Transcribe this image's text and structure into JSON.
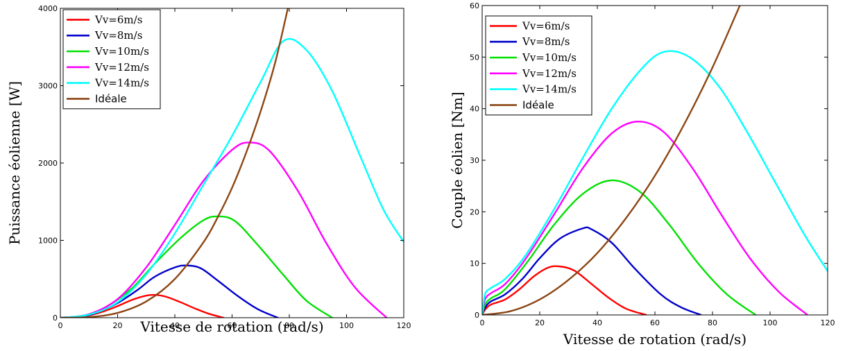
{
  "colors": {
    "Vv=6m/s": "#ff0000",
    "Vv=8m/s": "#0000cc",
    "Vv=10m/s": "#00e000",
    "Vv=12m/s": "#ff00ff",
    "Vv=14m/s": "#00ffff",
    "Idéale": "#8b4513"
  },
  "chart_data": [
    {
      "type": "line",
      "xlabel": "Vitesse de rotation (rad/s)",
      "ylabel": "Puissance éolienne [W]",
      "xlim": [
        0,
        120
      ],
      "ylim": [
        0,
        4000
      ],
      "xticks": [
        0,
        20,
        40,
        60,
        80,
        100,
        120
      ],
      "yticks": [
        0,
        1000,
        2000,
        3000,
        4000
      ],
      "grid": false,
      "legend_position": "top-left",
      "series": [
        {
          "name": "Vv=6m/s",
          "x": [
            0,
            5,
            10,
            15,
            20,
            25,
            30,
            33,
            37,
            42,
            47,
            52,
            57
          ],
          "y": [
            0,
            5,
            30,
            80,
            150,
            230,
            285,
            295,
            270,
            200,
            120,
            50,
            0
          ]
        },
        {
          "name": "Vv=8m/s",
          "x": [
            0,
            7,
            13,
            20,
            27,
            33,
            40,
            44,
            49,
            55,
            62,
            69,
            76
          ],
          "y": [
            0,
            12,
            70,
            190,
            360,
            530,
            650,
            675,
            640,
            480,
            280,
            110,
            0
          ]
        },
        {
          "name": "Vv=10m/s",
          "x": [
            0,
            8,
            16,
            25,
            33,
            42,
            50,
            55,
            61,
            69,
            78,
            86,
            95
          ],
          "y": [
            0,
            25,
            140,
            380,
            700,
            1030,
            1260,
            1310,
            1250,
            940,
            550,
            220,
            0
          ]
        },
        {
          "name": "Vv=12m/s",
          "x": [
            0,
            10,
            20,
            30,
            40,
            50,
            60,
            66,
            73,
            83,
            93,
            103,
            114
          ],
          "y": [
            0,
            45,
            240,
            650,
            1200,
            1770,
            2170,
            2265,
            2160,
            1640,
            960,
            390,
            0
          ]
        },
        {
          "name": "Vv=14m/s",
          "x": [
            0,
            10,
            20,
            30,
            40,
            50,
            60,
            70,
            78,
            86,
            95,
            105,
            113,
            120
          ],
          "y": [
            0,
            40,
            200,
            560,
            1090,
            1720,
            2350,
            3050,
            3580,
            3460,
            2930,
            2070,
            1390,
            980
          ]
        },
        {
          "name": "Idéale",
          "x": [
            0,
            10,
            20,
            30,
            40,
            50,
            55,
            60,
            65,
            70,
            75,
            79.5
          ],
          "y": [
            0,
            8,
            62,
            210,
            500,
            975,
            1300,
            1680,
            2140,
            2670,
            3290,
            4000
          ]
        }
      ]
    },
    {
      "type": "line",
      "xlabel": "Vitesse de rotation (rad/s)",
      "ylabel": "Couple éolien [Nm]",
      "xlim": [
        0,
        120
      ],
      "ylim": [
        0,
        60
      ],
      "xticks": [
        0,
        20,
        40,
        60,
        80,
        100,
        120
      ],
      "yticks": [
        0,
        10,
        20,
        30,
        40,
        50,
        60
      ],
      "grid": false,
      "legend_position": "top-left",
      "series": [
        {
          "name": "Vv=6m/s",
          "x": [
            0,
            1,
            3,
            8,
            13,
            18,
            23,
            27,
            32,
            38,
            44,
            50,
            57
          ],
          "y": [
            0,
            1.0,
            2.0,
            3.0,
            5.0,
            7.5,
            9.2,
            9.4,
            8.6,
            6.0,
            3.3,
            1.2,
            0
          ]
        },
        {
          "name": "Vv=8m/s",
          "x": [
            0,
            1,
            3,
            8,
            14,
            20,
            27,
            35,
            38,
            45,
            53,
            62,
            69,
            76
          ],
          "y": [
            0,
            1.4,
            2.6,
            4.0,
            7.0,
            11.0,
            14.8,
            16.8,
            16.6,
            14.0,
            9.0,
            4.0,
            1.5,
            0
          ]
        },
        {
          "name": "Vv=10m/s",
          "x": [
            0,
            1,
            3,
            8,
            16,
            25,
            35,
            45,
            55,
            65,
            75,
            85,
            95
          ],
          "y": [
            0,
            2.0,
            3.2,
            5.0,
            10.5,
            17.5,
            23.5,
            26.1,
            23.8,
            17.5,
            10.0,
            4.0,
            0
          ]
        },
        {
          "name": "Vv=12m/s",
          "x": [
            0,
            1,
            3,
            8,
            15,
            25,
            35,
            45,
            54,
            63,
            73,
            83,
            93,
            103,
            113
          ],
          "y": [
            0,
            3.0,
            4.2,
            6.0,
            10.8,
            19.5,
            28.5,
            35.2,
            37.5,
            35.5,
            28.5,
            19.5,
            11.0,
            4.5,
            0
          ]
        },
        {
          "name": "Vv=14m/s",
          "x": [
            0,
            1,
            3,
            8,
            15,
            25,
            35,
            45,
            55,
            63,
            72,
            82,
            92,
            102,
            112,
            120
          ],
          "y": [
            0,
            4.0,
            5.2,
            7.0,
            11.5,
            20.5,
            30.5,
            40.0,
            47.5,
            51.0,
            50.0,
            44.5,
            35.5,
            25.5,
            15.5,
            8.5
          ]
        },
        {
          "name": "Idéale",
          "x": [
            0,
            10,
            20,
            30,
            40,
            50,
            60,
            70,
            80,
            89.5
          ],
          "y": [
            0,
            0.75,
            3.0,
            6.8,
            12.0,
            18.8,
            27.0,
            36.8,
            48.0,
            60.0
          ]
        }
      ]
    }
  ]
}
